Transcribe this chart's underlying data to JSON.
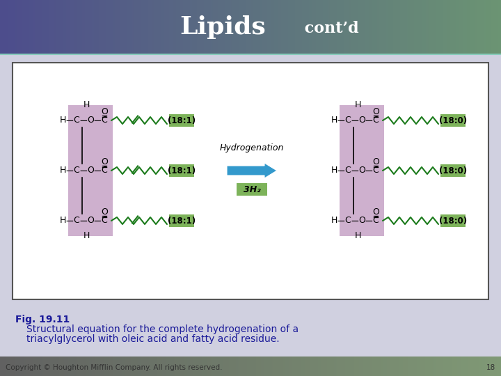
{
  "title_large": "Lipids",
  "title_small": " cont’d",
  "fig_label": "Fig. 19.11",
  "caption_line1": "Structural equation for the complete hydrogenation of a",
  "caption_line2": "triacylglycerol with oleic acid and fatty acid residue.",
  "copyright": "Copyright © Houghton Mifflin Company. All rights reserved.",
  "page_num": "18",
  "glycerol_color": "#c9a8c9",
  "fatty_acid_color": "#7db35a",
  "arrow_color": "#3399cc",
  "label_18_1": "(18:1)",
  "label_18_0": "(18:0)",
  "hydrogenation_label": "Hydrogenation",
  "h2_label": "3H₂",
  "caption_color": "#1a1a99",
  "text_color": "#000000",
  "box_border": "#555555",
  "bg_color": "#d0d0e0"
}
